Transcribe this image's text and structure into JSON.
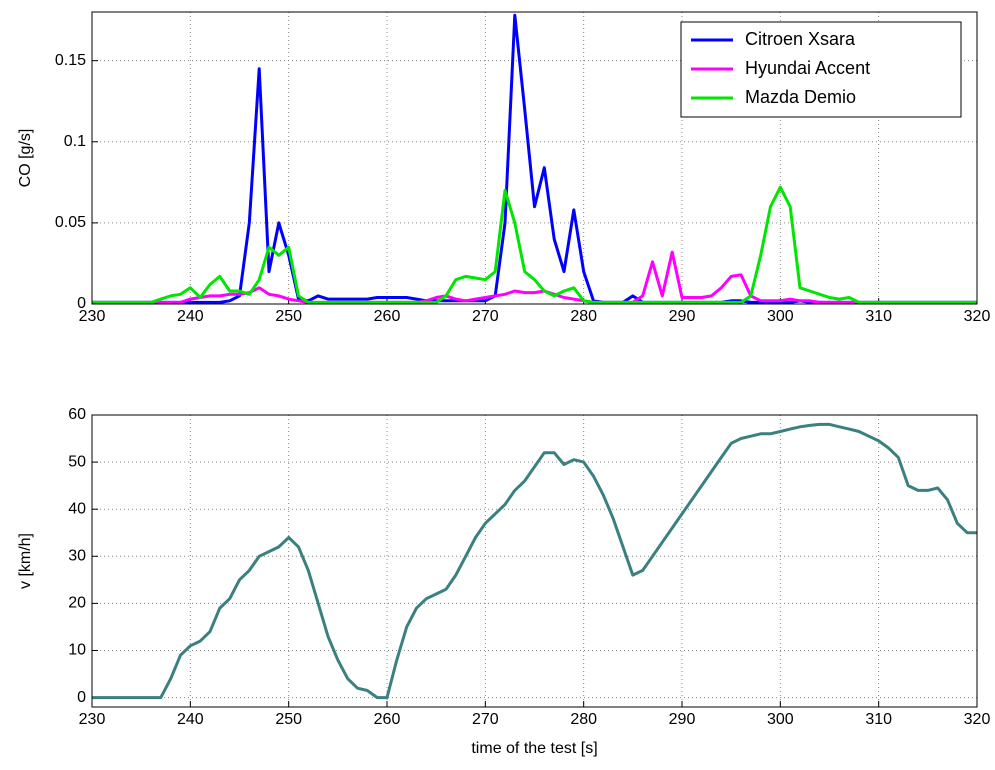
{
  "chart_data": [
    {
      "type": "line",
      "ylabel": "CO [g/s]",
      "x": [
        230,
        231,
        232,
        233,
        234,
        235,
        236,
        237,
        238,
        239,
        240,
        241,
        242,
        243,
        244,
        245,
        246,
        247,
        248,
        249,
        250,
        251,
        252,
        253,
        254,
        255,
        256,
        257,
        258,
        259,
        260,
        261,
        262,
        263,
        264,
        265,
        266,
        267,
        268,
        269,
        270,
        271,
        272,
        273,
        274,
        275,
        276,
        277,
        278,
        279,
        280,
        281,
        282,
        283,
        284,
        285,
        286,
        287,
        288,
        289,
        290,
        291,
        292,
        293,
        294,
        295,
        296,
        297,
        298,
        299,
        300,
        301,
        302,
        303,
        304,
        305,
        306,
        307,
        308,
        309,
        310,
        311,
        312,
        313,
        314,
        315,
        316,
        317,
        318,
        319,
        320
      ],
      "xlim": [
        230,
        320
      ],
      "xticks": [
        230,
        240,
        250,
        260,
        270,
        280,
        290,
        300,
        310,
        320
      ],
      "ylim": [
        0,
        0.18
      ],
      "yticks": [
        0,
        0.05,
        0.1,
        0.15
      ],
      "grid": true,
      "legend": "upper right",
      "series": [
        {
          "name": "Citroen Xsara",
          "color": "#0000ff",
          "values": [
            0.001,
            0.001,
            0.001,
            0.001,
            0.001,
            0.001,
            0.001,
            0.001,
            0.001,
            0.001,
            0.001,
            0.001,
            0.001,
            0.001,
            0.002,
            0.005,
            0.05,
            0.145,
            0.02,
            0.05,
            0.03,
            0.003,
            0.002,
            0.005,
            0.003,
            0.003,
            0.003,
            0.003,
            0.003,
            0.004,
            0.004,
            0.004,
            0.004,
            0.003,
            0.002,
            0.002,
            0.002,
            0.002,
            0.002,
            0.002,
            0.002,
            0.005,
            0.05,
            0.178,
            0.12,
            0.06,
            0.084,
            0.04,
            0.02,
            0.058,
            0.02,
            0.002,
            0.001,
            0.001,
            0.001,
            0.005,
            0.001,
            0.001,
            0.001,
            0.001,
            0.001,
            0.001,
            0.001,
            0.001,
            0.001,
            0.002,
            0.002,
            0.001,
            0.001,
            0.001,
            0.001,
            0.001,
            0.002,
            0.001,
            0.001,
            0.001,
            0.001,
            0.001,
            0.001,
            0.001,
            0.001,
            0.001,
            0.001,
            0.001,
            0.001,
            0.001,
            0.001,
            0.001,
            0.001,
            0.001,
            0.001
          ]
        },
        {
          "name": "Hyundai Accent",
          "color": "#ff00ff",
          "values": [
            0.001,
            0.001,
            0.001,
            0.001,
            0.001,
            0.001,
            0.001,
            0.001,
            0.001,
            0.001,
            0.003,
            0.004,
            0.005,
            0.005,
            0.006,
            0.006,
            0.007,
            0.01,
            0.006,
            0.005,
            0.003,
            0.002,
            0.001,
            0.001,
            0.001,
            0.001,
            0.001,
            0.001,
            0.001,
            0.001,
            0.001,
            0.001,
            0.001,
            0.001,
            0.002,
            0.004,
            0.005,
            0.003,
            0.002,
            0.003,
            0.004,
            0.005,
            0.006,
            0.008,
            0.007,
            0.007,
            0.008,
            0.006,
            0.004,
            0.003,
            0.002,
            0.001,
            0.001,
            0.001,
            0.001,
            0.001,
            0.005,
            0.026,
            0.005,
            0.032,
            0.004,
            0.004,
            0.004,
            0.005,
            0.01,
            0.017,
            0.018,
            0.005,
            0.002,
            0.002,
            0.002,
            0.003,
            0.002,
            0.002,
            0.001,
            0.001,
            0.001,
            0.001,
            0.001,
            0.001,
            0.001,
            0.001,
            0.001,
            0.001,
            0.001,
            0.001,
            0.001,
            0.001,
            0.001,
            0.001,
            0.001
          ]
        },
        {
          "name": "Mazda Demio",
          "color": "#00e600",
          "values": [
            0.001,
            0.001,
            0.001,
            0.001,
            0.001,
            0.001,
            0.001,
            0.003,
            0.005,
            0.006,
            0.01,
            0.004,
            0.012,
            0.017,
            0.008,
            0.008,
            0.006,
            0.015,
            0.035,
            0.03,
            0.035,
            0.005,
            0.001,
            0.001,
            0.001,
            0.001,
            0.001,
            0.001,
            0.001,
            0.001,
            0.001,
            0.001,
            0.001,
            0.001,
            0.001,
            0.001,
            0.005,
            0.015,
            0.017,
            0.016,
            0.015,
            0.02,
            0.07,
            0.05,
            0.02,
            0.015,
            0.008,
            0.005,
            0.008,
            0.01,
            0.002,
            0.001,
            0.001,
            0.001,
            0.001,
            0.001,
            0.001,
            0.001,
            0.001,
            0.001,
            0.001,
            0.001,
            0.001,
            0.001,
            0.001,
            0.001,
            0.001,
            0.005,
            0.03,
            0.06,
            0.072,
            0.06,
            0.01,
            0.008,
            0.006,
            0.004,
            0.003,
            0.004,
            0.001,
            0.001,
            0.001,
            0.001,
            0.001,
            0.001,
            0.001,
            0.001,
            0.001,
            0.001,
            0.001,
            0.001,
            0.001
          ]
        }
      ]
    },
    {
      "type": "line",
      "ylabel": "v [km/h]",
      "xlabel": "time of the test [s]",
      "x": [
        230,
        231,
        232,
        233,
        234,
        235,
        236,
        237,
        238,
        239,
        240,
        241,
        242,
        243,
        244,
        245,
        246,
        247,
        248,
        249,
        250,
        251,
        252,
        253,
        254,
        255,
        256,
        257,
        258,
        259,
        260,
        261,
        262,
        263,
        264,
        265,
        266,
        267,
        268,
        269,
        270,
        271,
        272,
        273,
        274,
        275,
        276,
        277,
        278,
        279,
        280,
        281,
        282,
        283,
        284,
        285,
        286,
        287,
        288,
        289,
        290,
        291,
        292,
        293,
        294,
        295,
        296,
        297,
        298,
        299,
        300,
        301,
        302,
        303,
        304,
        305,
        306,
        307,
        308,
        309,
        310,
        311,
        312,
        313,
        314,
        315,
        316,
        317,
        318,
        319,
        320
      ],
      "xlim": [
        230,
        320
      ],
      "xticks": [
        230,
        240,
        250,
        260,
        270,
        280,
        290,
        300,
        310,
        320
      ],
      "ylim": [
        -2,
        60
      ],
      "yticks": [
        0,
        10,
        20,
        30,
        40,
        50,
        60
      ],
      "grid": true,
      "color": "#3a8080",
      "values": [
        0,
        0,
        0,
        0,
        0,
        0,
        0,
        0,
        4,
        9,
        11,
        12,
        14,
        19,
        21,
        25,
        27,
        30,
        31,
        32,
        34,
        32,
        27,
        20,
        13,
        8,
        4,
        2,
        1.5,
        0,
        0,
        8,
        15,
        19,
        21,
        22,
        23,
        26,
        30,
        34,
        37,
        39,
        41,
        44,
        46,
        49,
        52,
        52,
        49.5,
        50.5,
        50,
        47,
        43,
        38,
        32,
        26,
        27,
        30,
        33,
        36,
        39,
        42,
        45,
        48,
        51,
        54,
        55,
        55.5,
        56,
        56,
        56.5,
        57,
        57.5,
        57.8,
        58,
        58,
        57.5,
        57,
        56.5,
        55.5,
        54.5,
        53,
        51,
        45,
        44,
        44,
        44.5,
        42,
        37,
        35,
        35
      ]
    }
  ]
}
